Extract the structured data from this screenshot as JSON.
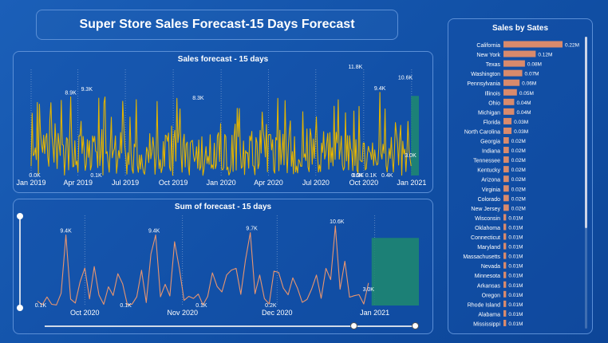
{
  "header": {
    "title": "Super Store Sales Forecast-15 Days Forecast"
  },
  "chart_data": [
    {
      "type": "line",
      "title": "Sales forecast - 15 days",
      "x_tick_labels": [
        "Jan 2019",
        "Apr 2019",
        "Jul 2019",
        "Oct 2019",
        "Jan 2020",
        "Apr 2020",
        "Jul 2020",
        "Oct 2020",
        "Jan 2021"
      ],
      "x_range": [
        "2019-01-01",
        "2021-01-15"
      ],
      "y_range": [
        0,
        12
      ],
      "y_unit": "K",
      "series": [
        {
          "color": "#e3b400"
        }
      ],
      "forecast_band": {
        "start": "2020-12-31",
        "end": "2021-01-15",
        "color": "#1f8a6f"
      },
      "data_labels": [
        {
          "text": "0.0K",
          "date": "2019-01-08",
          "value": 0.0
        },
        {
          "text": "8.9K",
          "date": "2019-03-18",
          "value": 8.9
        },
        {
          "text": "9.3K",
          "date": "2019-04-18",
          "value": 9.3
        },
        {
          "text": "0.1K",
          "date": "2019-05-06",
          "value": 0.1
        },
        {
          "text": "8.3K",
          "date": "2019-11-18",
          "value": 8.3
        },
        {
          "text": "11.8K",
          "date": "2020-09-15",
          "value": 11.8
        },
        {
          "text": "9.4K",
          "date": "2020-11-01",
          "value": 9.4
        },
        {
          "text": "10.6K",
          "date": "2020-12-20",
          "value": 10.6
        },
        {
          "text": "0.6K",
          "date": "2020-09-18",
          "value": 0.6
        },
        {
          "text": "0.3K",
          "date": "2020-09-20",
          "value": 0.3
        },
        {
          "text": "0.1K",
          "date": "2020-10-15",
          "value": 0.1
        },
        {
          "text": "0.4K",
          "date": "2020-11-15",
          "value": 0.4
        },
        {
          "text": "3.0K",
          "date": "2020-12-30",
          "value": 3.0
        }
      ]
    },
    {
      "type": "line",
      "title": "Sum of forecast - 15 days",
      "x_tick_labels": [
        "Oct 2020",
        "Nov 2020",
        "Dec 2020",
        "Jan 2021"
      ],
      "x_range": [
        "2020-09-16",
        "2021-01-15"
      ],
      "y_range": [
        0,
        12
      ],
      "y_unit": "K",
      "series": [
        {
          "color": "#e8956f"
        }
      ],
      "forecast_band": {
        "start": "2020-12-31",
        "end": "2021-01-15",
        "color": "#1f8a6f"
      },
      "data_labels": [
        {
          "text": "0.1K",
          "date": "2020-09-17",
          "value": 0.1
        },
        {
          "text": "9.4K",
          "date": "2020-09-25",
          "value": 9.4
        },
        {
          "text": "0.1K",
          "date": "2020-10-14",
          "value": 0.1
        },
        {
          "text": "9.4K",
          "date": "2020-10-23",
          "value": 9.4
        },
        {
          "text": "0.1K",
          "date": "2020-11-07",
          "value": 0.1
        },
        {
          "text": "9.7K",
          "date": "2020-11-23",
          "value": 9.7
        },
        {
          "text": "0.2K",
          "date": "2020-11-29",
          "value": 0.2
        },
        {
          "text": "10.6K",
          "date": "2020-12-20",
          "value": 10.6
        },
        {
          "text": "3.0K",
          "date": "2020-12-30",
          "value": 3.0
        }
      ]
    },
    {
      "type": "bar",
      "orientation": "horizontal",
      "title": "Sales by Sates",
      "bar_color": "#d98a6c",
      "categories": [
        "California",
        "New York",
        "Texas",
        "Washington",
        "Pennsylvania",
        "Illinois",
        "Ohio",
        "Michigan",
        "Florida",
        "North Carolina",
        "Georgia",
        "Indiana",
        "Tennessee",
        "Kentucky",
        "Arizona",
        "Virginia",
        "Colorado",
        "New Jersey",
        "Wisconsin",
        "Oklahoma",
        "Connecticut",
        "Maryland",
        "Massachusetts",
        "Nevada",
        "Minnesota",
        "Arkansas",
        "Oregon",
        "Rhode Island",
        "Alabama",
        "Mississippi"
      ],
      "values": [
        0.22,
        0.12,
        0.08,
        0.07,
        0.06,
        0.05,
        0.04,
        0.04,
        0.03,
        0.03,
        0.02,
        0.02,
        0.02,
        0.02,
        0.02,
        0.02,
        0.02,
        0.02,
        0.01,
        0.01,
        0.01,
        0.01,
        0.01,
        0.01,
        0.01,
        0.01,
        0.01,
        0.01,
        0.01,
        0.01
      ],
      "value_labels": [
        "0.22M",
        "0.12M",
        "0.08M",
        "0.07M",
        "0.06M",
        "0.05M",
        "0.04M",
        "0.04M",
        "0.03M",
        "0.03M",
        "0.02M",
        "0.02M",
        "0.02M",
        "0.02M",
        "0.02M",
        "0.02M",
        "0.02M",
        "0.02M",
        "0.01M",
        "0.01M",
        "0.01M",
        "0.01M",
        "0.01M",
        "0.01M",
        "0.01M",
        "0.01M",
        "0.01M",
        "0.01M",
        "0.01M",
        "0.01M"
      ]
    }
  ]
}
